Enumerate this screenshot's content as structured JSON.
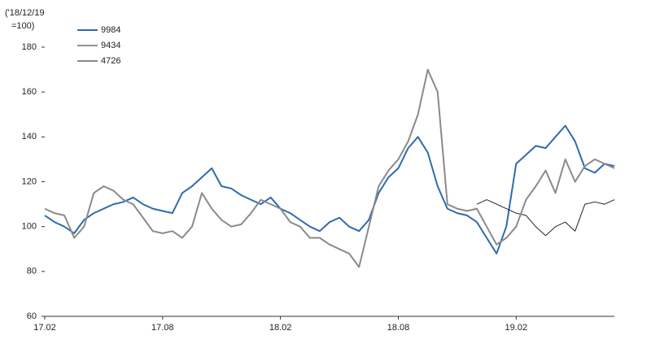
{
  "chart_data": {
    "type": "line",
    "ylabel": [
      "('18/12/19",
      "=100)"
    ],
    "categories": [
      "17.02",
      null,
      null,
      null,
      null,
      null,
      null,
      null,
      null,
      null,
      null,
      null,
      "17.08",
      null,
      null,
      null,
      null,
      null,
      null,
      null,
      null,
      null,
      null,
      null,
      "18.02",
      null,
      null,
      null,
      null,
      null,
      null,
      null,
      null,
      null,
      null,
      null,
      "18.08",
      null,
      null,
      null,
      null,
      null,
      null,
      null,
      null,
      null,
      null,
      null,
      "19.02",
      null,
      null,
      null,
      null,
      null,
      null,
      null,
      null,
      null,
      null
    ],
    "series": [
      {
        "name": "9984",
        "color": "#2e6bb0",
        "width": 2,
        "values": [
          105,
          102,
          100,
          97,
          103,
          106,
          108,
          110,
          111,
          113,
          110,
          108,
          107,
          106,
          115,
          118,
          122,
          126,
          118,
          117,
          114,
          112,
          110,
          113,
          108,
          106,
          103,
          100,
          98,
          102,
          104,
          100,
          98,
          103,
          115,
          122,
          126,
          135,
          140,
          133,
          118,
          108,
          106,
          105,
          102,
          95,
          88,
          100,
          128,
          132,
          136,
          135,
          140,
          145,
          138,
          126,
          124,
          128,
          127
        ]
      },
      {
        "name": "9434",
        "color": "#222222",
        "width": 1,
        "values": [
          null,
          null,
          null,
          null,
          null,
          null,
          null,
          null,
          null,
          null,
          null,
          null,
          null,
          null,
          null,
          null,
          null,
          null,
          null,
          null,
          null,
          null,
          null,
          null,
          null,
          null,
          null,
          null,
          null,
          null,
          null,
          null,
          null,
          null,
          null,
          null,
          null,
          null,
          null,
          null,
          null,
          null,
          null,
          null,
          110,
          112,
          110,
          108,
          106,
          105,
          100,
          96,
          100,
          102,
          98,
          110,
          111,
          110,
          112
        ]
      },
      {
        "name": "4726",
        "color": "#8a8a8a",
        "width": 2,
        "values": [
          108,
          106,
          105,
          95,
          100,
          115,
          118,
          116,
          112,
          110,
          104,
          98,
          97,
          98,
          95,
          100,
          115,
          108,
          103,
          100,
          101,
          106,
          112,
          110,
          108,
          102,
          100,
          95,
          95,
          92,
          90,
          88,
          82,
          100,
          118,
          125,
          130,
          138,
          150,
          170,
          160,
          110,
          108,
          107,
          108,
          100,
          92,
          95,
          100,
          112,
          118,
          125,
          115,
          130,
          120,
          127,
          130,
          128,
          126
        ]
      }
    ],
    "ylim": [
      60,
      180
    ],
    "yticks": [
      60,
      80,
      100,
      120,
      140,
      160,
      180
    ],
    "grid": false
  }
}
